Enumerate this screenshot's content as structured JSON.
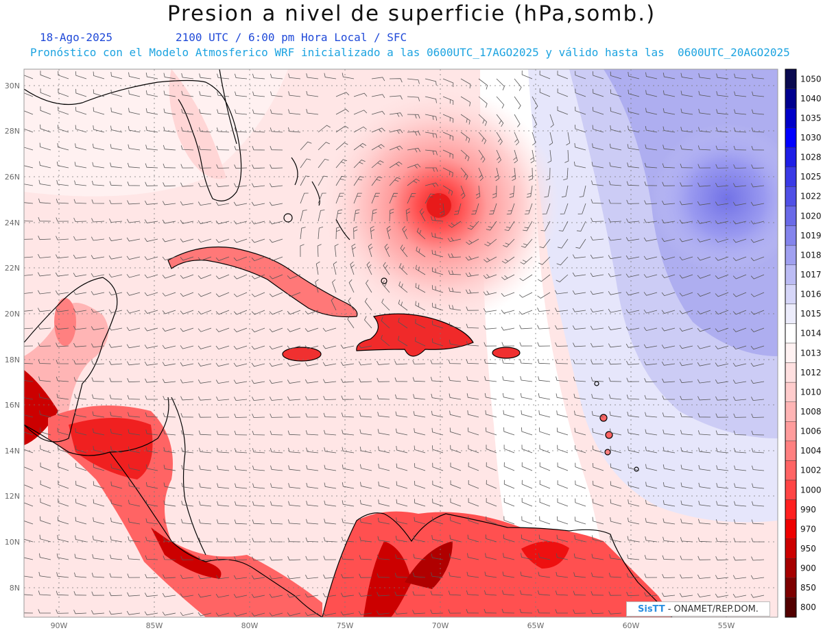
{
  "title": "Presion a nivel de superficie (hPa,somb.)",
  "date": "18-Ago-2025",
  "valid_time": "2100 UTC / 6:00 pm Hora Local / SFC",
  "forecast_note": "Pronóstico con el Modelo Atmosferico WRF inicializado a las 0600UTC_17AGO2025 y válido hasta las  0600UTC_20AGO2025",
  "lat_labels": [
    "30N",
    "28N",
    "26N",
    "24N",
    "22N",
    "20N",
    "18N",
    "16N",
    "14N",
    "12N",
    "10N",
    "8N"
  ],
  "lon_labels": [
    "90W",
    "85W",
    "80W",
    "75W",
    "70W",
    "65W",
    "60W",
    "55W"
  ],
  "colorbar": {
    "unit": "hPa",
    "levels": [
      "1050",
      "1040",
      "1035",
      "1030",
      "1028",
      "1025",
      "1022",
      "1020",
      "1019",
      "1018",
      "1017",
      "1016",
      "1015",
      "1014",
      "1013",
      "1012",
      "1010",
      "1008",
      "1006",
      "1004",
      "1002",
      "1000",
      "990",
      "970",
      "950",
      "900",
      "850",
      "800"
    ],
    "colors": [
      "#0a0a50",
      "#00008f",
      "#0000c8",
      "#0000ff",
      "#1e1ee6",
      "#3a3ae6",
      "#5050e6",
      "#6a6ae8",
      "#8484ec",
      "#a0a0f0",
      "#bcbcf4",
      "#d6d6f8",
      "#ececfb",
      "#ffffff",
      "#fff2f2",
      "#ffe0e0",
      "#ffcccc",
      "#ffb5b5",
      "#ff9c9c",
      "#ff8080",
      "#ff6464",
      "#ff4545",
      "#ff2020",
      "#ee0000",
      "#cc0000",
      "#a60000",
      "#7d0000",
      "#520000"
    ]
  },
  "features": {
    "cyclone_center": "Pressure minimum near 24.7N 70.1W"
  },
  "credit": {
    "logo": "SisTT",
    "text": "- ONAMET/REP.DOM."
  }
}
